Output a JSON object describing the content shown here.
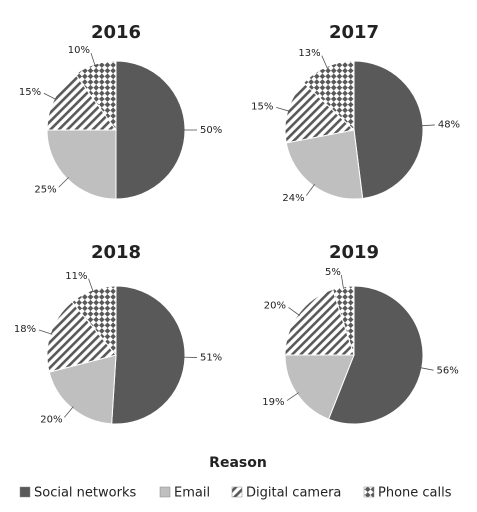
{
  "chart_data": [
    {
      "type": "pie",
      "title": "2016",
      "categories": [
        "Social networks",
        "Email",
        "Digital camera",
        "Phone calls"
      ],
      "values": [
        50,
        25,
        15,
        10
      ],
      "value_labels": [
        "50%",
        "25%",
        "15%",
        "10%"
      ],
      "colors": [
        "#595959",
        "#bfbfbf",
        "#595959",
        "#595959"
      ],
      "patterns": [
        "solid",
        "solid",
        "hatch",
        "check"
      ]
    },
    {
      "type": "pie",
      "title": "2017",
      "categories": [
        "Social networks",
        "Email",
        "Digital camera",
        "Phone calls"
      ],
      "values": [
        48,
        24,
        15,
        13
      ],
      "value_labels": [
        "48%",
        "24%",
        "15%",
        "13%"
      ],
      "colors": [
        "#595959",
        "#bfbfbf",
        "#595959",
        "#595959"
      ],
      "patterns": [
        "solid",
        "solid",
        "hatch",
        "check"
      ]
    },
    {
      "type": "pie",
      "title": "2018",
      "categories": [
        "Social networks",
        "Email",
        "Digital camera",
        "Phone calls"
      ],
      "values": [
        51,
        20,
        18,
        11
      ],
      "value_labels": [
        "51%",
        "20%",
        "18%",
        "11%"
      ],
      "colors": [
        "#595959",
        "#bfbfbf",
        "#595959",
        "#595959"
      ],
      "patterns": [
        "solid",
        "solid",
        "hatch",
        "check"
      ]
    },
    {
      "type": "pie",
      "title": "2019",
      "categories": [
        "Social networks",
        "Email",
        "Digital camera",
        "Phone calls"
      ],
      "values": [
        56,
        19,
        20,
        5
      ],
      "value_labels": [
        "56%",
        "19%",
        "20%",
        "5%"
      ],
      "colors": [
        "#595959",
        "#bfbfbf",
        "#595959",
        "#595959"
      ],
      "patterns": [
        "solid",
        "solid",
        "hatch",
        "check"
      ]
    }
  ],
  "legend_title": "Reason"
}
